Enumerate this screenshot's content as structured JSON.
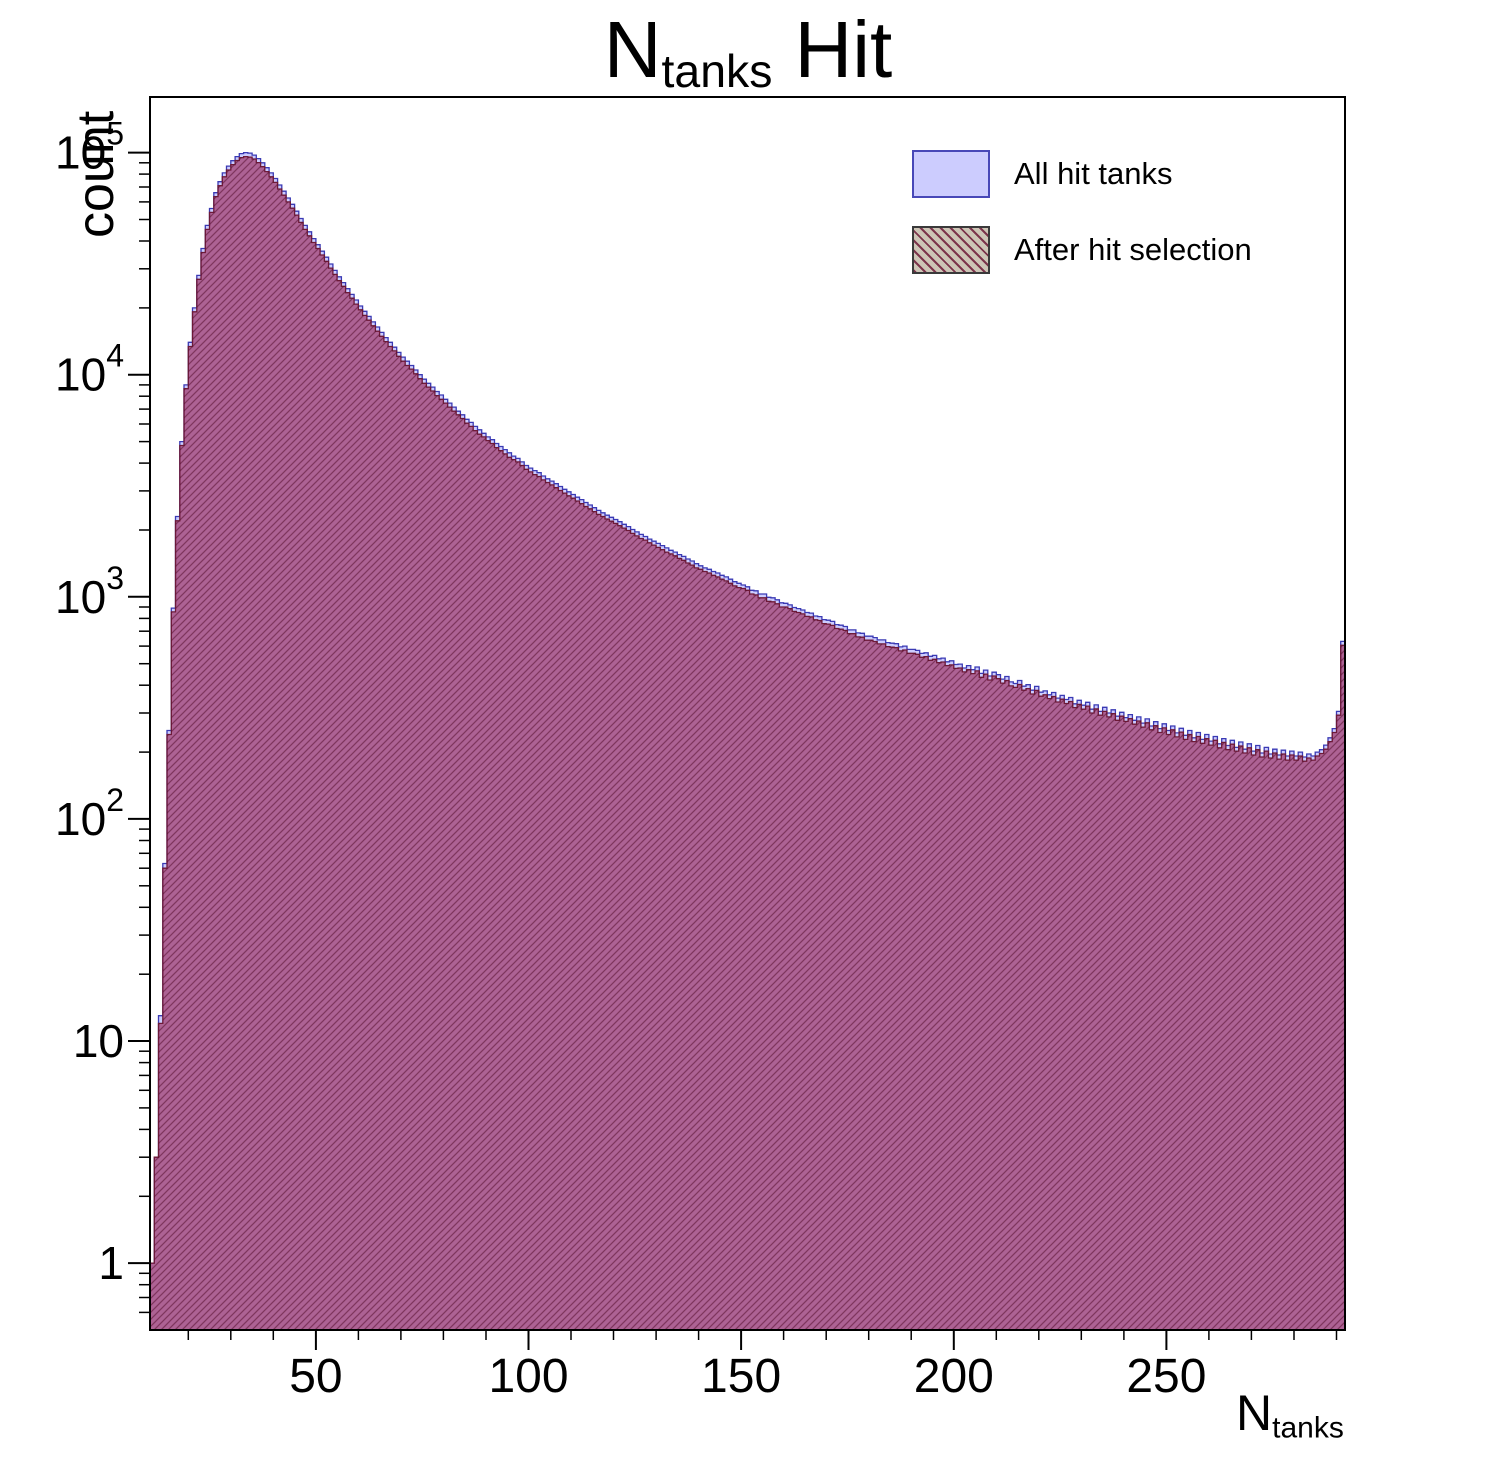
{
  "title": {
    "prefix": "N",
    "sub": "tanks",
    "suffix": "Hit"
  },
  "axes": {
    "y_label": "count",
    "x_label_prefix": "N",
    "x_label_sub": "tanks",
    "x_ticks": [
      50,
      100,
      150,
      200,
      250
    ],
    "x_minor_step": 10,
    "y_ticks": [
      {
        "value": 1,
        "base": "1",
        "exp": ""
      },
      {
        "value": 10,
        "base": "10",
        "exp": ""
      },
      {
        "value": 100,
        "base": "10",
        "exp": "2"
      },
      {
        "value": 1000,
        "base": "10",
        "exp": "3"
      },
      {
        "value": 10000,
        "base": "10",
        "exp": "4"
      },
      {
        "value": 100000,
        "base": "10",
        "exp": "5"
      }
    ]
  },
  "legend": {
    "items": [
      {
        "label": "All hit tanks",
        "swatch": "blue-solid"
      },
      {
        "label": "After hit selection",
        "swatch": "red-hatched"
      }
    ]
  },
  "colors": {
    "all_fill": "#ccccfe",
    "all_line": "#3a3ab4",
    "sel_fill": "rgba(150,20,70,0.58)",
    "sel_line": "#6e1a38",
    "hatch_line": "rgba(80,10,40,0.5)",
    "frame": "#000000"
  },
  "chart_data": {
    "type": "bar",
    "subtype": "overlaid-histograms",
    "title": "N_{tanks} Hit",
    "xlabel": "N_{tanks}",
    "ylabel": "count",
    "y_scale": "log",
    "x_start": 11,
    "bin_width": 1,
    "x_range": [
      11,
      292
    ],
    "y_range": [
      0.5,
      178000
    ],
    "legend_position": "top-right",
    "series": [
      {
        "name": "All hit tanks",
        "fill": "#ccccfe",
        "line": "#3a3ab4",
        "values": [
          1,
          3,
          13,
          63,
          250,
          890,
          2300,
          5000,
          9000,
          14000,
          20000,
          28000,
          37000,
          47000,
          56000,
          66000,
          74000,
          81000,
          87000,
          92000,
          96000,
          99000,
          100000,
          99500,
          97500,
          94000,
          90000,
          85500,
          81000,
          76500,
          71500,
          67000,
          62500,
          58500,
          54500,
          50500,
          47000,
          44000,
          41000,
          38500,
          36000,
          33800,
          31500,
          29500,
          27600,
          26000,
          24400,
          23000,
          21700,
          20400,
          19300,
          18300,
          17300,
          16400,
          15500,
          14700,
          14000,
          13300,
          12600,
          12000,
          11500,
          11000,
          10500,
          10000,
          9550,
          9150,
          8800,
          8400,
          8100,
          7750,
          7450,
          7150,
          6850,
          6600,
          6300,
          6100,
          5850,
          5650,
          5450,
          5250,
          5100,
          4900,
          4750,
          4600,
          4450,
          4300,
          4200,
          4050,
          3900,
          3800,
          3700,
          3620,
          3500,
          3400,
          3320,
          3230,
          3140,
          3050,
          2970,
          2890,
          2810,
          2740,
          2660,
          2590,
          2520,
          2450,
          2390,
          2330,
          2280,
          2230,
          2180,
          2120,
          2070,
          2010,
          1960,
          1910,
          1870,
          1820,
          1780,
          1740,
          1700,
          1660,
          1620,
          1590,
          1550,
          1520,
          1480,
          1450,
          1410,
          1380,
          1350,
          1330,
          1300,
          1280,
          1250,
          1230,
          1200,
          1170,
          1150,
          1130,
          1110,
          1070,
          1065,
          1030,
          1030,
          995,
          990,
          970,
          940,
          935,
          920,
          895,
          885,
          872,
          850,
          845,
          820,
          815,
          790,
          785,
          775,
          750,
          745,
          735,
          710,
          710,
          688,
          685,
          665,
          665,
          655,
          640,
          640,
          622,
          618,
          615,
          595,
          600,
          580,
          580,
          574,
          556,
          560,
          540,
          545,
          526,
          530,
          510,
          515,
          496,
          498,
          478,
          490,
          470,
          483,
          452,
          468,
          440,
          458,
          446,
          426,
          438,
          414,
          407,
          420,
          396,
          402,
          380,
          395,
          372,
          377,
          362,
          371,
          350,
          360,
          345,
          352,
          330,
          342,
          325,
          335,
          312,
          326,
          305,
          318,
          300,
          310,
          290,
          302,
          286,
          295,
          278,
          288,
          270,
          282,
          262,
          274,
          255,
          268,
          250,
          262,
          244,
          256,
          238,
          250,
          232,
          245,
          228,
          240,
          224,
          235,
          218,
          230,
          214,
          226,
          210,
          222,
          206,
          218,
          202,
          214,
          198,
          210,
          196,
          206,
          194,
          204,
          192,
          202,
          192,
          200,
          190,
          196,
          192,
          200,
          205,
          215,
          232,
          255,
          305,
          630
        ]
      },
      {
        "name": "After hit selection",
        "fill": "rgba(150,20,70,0.58)",
        "line": "#6e1a38",
        "hatch": true,
        "values": [
          1,
          3,
          12,
          60,
          240,
          855,
          2200,
          4800,
          8650,
          13400,
          19200,
          26900,
          35500,
          45100,
          53800,
          63400,
          71000,
          77800,
          83500,
          88300,
          92200,
          95000,
          96000,
          95500,
          93600,
          90200,
          86400,
          82100,
          77800,
          73400,
          68600,
          64300,
          60000,
          56200,
          52300,
          48500,
          45100,
          42200,
          39400,
          37000,
          34600,
          32400,
          30200,
          28300,
          26500,
          25000,
          23400,
          22100,
          20800,
          19600,
          18500,
          17600,
          16600,
          15700,
          14900,
          14100,
          13400,
          12800,
          12100,
          11500,
          11000,
          10600,
          10100,
          9600,
          9150,
          8800,
          8450,
          8050,
          7750,
          7450,
          7150,
          6850,
          6600,
          6350,
          6050,
          5850,
          5600,
          5400,
          5250,
          5050,
          4900,
          4700,
          4550,
          4400,
          4250,
          4150,
          4050,
          3900,
          3750,
          3650,
          3550,
          3480,
          3360,
          3270,
          3190,
          3100,
          3010,
          2930,
          2850,
          2780,
          2700,
          2630,
          2550,
          2490,
          2420,
          2350,
          2300,
          2240,
          2190,
          2140,
          2090,
          2040,
          1990,
          1930,
          1880,
          1830,
          1800,
          1750,
          1710,
          1670,
          1630,
          1590,
          1560,
          1530,
          1490,
          1460,
          1420,
          1390,
          1350,
          1330,
          1300,
          1280,
          1250,
          1230,
          1200,
          1180,
          1150,
          1120,
          1100,
          1090,
          1070,
          1030,
          1020,
          990,
          990,
          955,
          950,
          930,
          900,
          900,
          885,
          860,
          850,
          838,
          816,
          812,
          788,
          782,
          758,
          754,
          744,
          720,
          715,
          706,
          682,
          682,
          660,
          658,
          638,
          638,
          629,
          614,
          614,
          597,
          593,
          590,
          571,
          576,
          557,
          557,
          551,
          534,
          538,
          518,
          523,
          505,
          509,
          490,
          494,
          476,
          478,
          459,
          470,
          451,
          464,
          434,
          449,
          422,
          440,
          428,
          409,
          420,
          397,
          391,
          403,
          380,
          386,
          365,
          379,
          357,
          362,
          348,
          356,
          336,
          346,
          331,
          338,
          317,
          328,
          312,
          322,
          300,
          313,
          293,
          305,
          288,
          298,
          278,
          290,
          275,
          283,
          267,
          276,
          259,
          271,
          252,
          263,
          245,
          257,
          240,
          252,
          234,
          246,
          228,
          240,
          223,
          235,
          219,
          230,
          215,
          226,
          209,
          221,
          205,
          217,
          202,
          213,
          198,
          209,
          194,
          205,
          190,
          202,
          188,
          198,
          186,
          196,
          184,
          194,
          184,
          192,
          182,
          188,
          184,
          192,
          197,
          206,
          223,
          245,
          293,
          605
        ]
      }
    ]
  }
}
